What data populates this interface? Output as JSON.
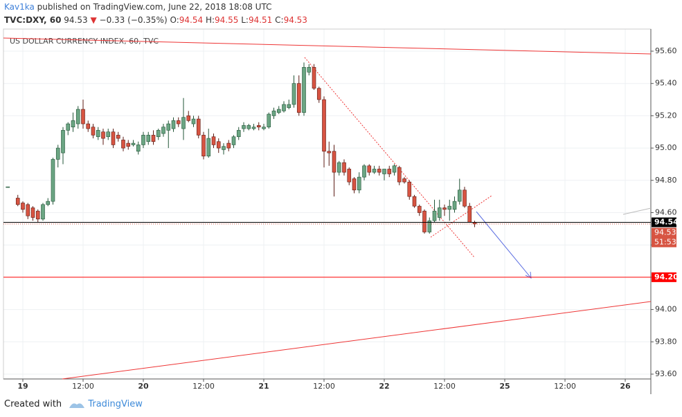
{
  "header": {
    "author": "Kav1ka",
    "published": "published on TradingView.com, June 22, 2018 18:08 UTC",
    "symbol": "TVC:DXY, 60",
    "last": "94.53",
    "change": "−0.33 (−0.35%)",
    "o_label": "O:",
    "o": "94.54",
    "h_label": "H:",
    "h": "94.55",
    "l_label": "L:",
    "l": "94.51",
    "c_label": "C:",
    "c": "94.53"
  },
  "chart_data": {
    "type": "candlestick",
    "title": "US DOLLAR CURRENCY INDEX, 60, TVC",
    "up_color": "#6ba583",
    "down_color": "#d75442",
    "x": [
      -3,
      -1,
      0,
      1,
      2,
      3,
      4,
      5,
      6,
      7,
      8,
      9,
      10,
      11,
      12,
      13,
      14,
      15,
      16,
      17,
      18,
      19,
      20,
      21,
      22,
      23,
      24,
      25,
      26,
      27,
      28,
      29,
      30,
      31,
      32,
      33,
      34,
      35,
      36,
      37,
      38,
      39,
      40,
      41,
      42,
      43,
      44,
      45,
      46,
      47,
      48,
      49,
      50,
      51,
      52,
      53,
      54,
      55,
      56,
      57,
      58,
      59,
      60,
      61,
      62,
      63,
      64,
      65,
      66,
      67,
      68,
      69,
      70,
      71,
      72,
      73,
      74,
      75,
      76,
      77,
      78,
      79,
      80,
      81,
      82,
      83,
      84,
      85,
      86,
      87,
      88,
      89,
      90
    ],
    "open": [
      94.76,
      94.69,
      94.66,
      94.65,
      94.63,
      94.61,
      94.56,
      94.65,
      94.67,
      94.93,
      94.97,
      95.11,
      95.13,
      95.15,
      95.24,
      95.15,
      95.13,
      95.07,
      95.1,
      95.07,
      95.1,
      95.08,
      95.05,
      95.03,
      95.02,
      94.98,
      95.02,
      95.04,
      95.08,
      95.07,
      95.09,
      95.11,
      95.12,
      95.17,
      95.12,
      95.2,
      95.15,
      95.18,
      95.08,
      94.95,
      95.07,
      95.04,
      94.99,
      95.03,
      95.02,
      95.07,
      95.12,
      95.12,
      95.12,
      95.14,
      95.12,
      95.13,
      95.2,
      95.22,
      95.23,
      95.25,
      95.27,
      95.4,
      95.22,
      95.47,
      95.5,
      95.37,
      95.3,
      94.98,
      94.98,
      94.85,
      94.91,
      94.87,
      94.81,
      94.74,
      94.82,
      94.89,
      94.85,
      94.87,
      94.84,
      94.87,
      94.85,
      94.88,
      94.81,
      94.79,
      94.7,
      94.64,
      94.61,
      94.48,
      94.55,
      94.57,
      94.63,
      94.62,
      94.62,
      94.67,
      94.74,
      94.64,
      94.54
    ],
    "high": [
      94.76,
      94.71,
      94.67,
      94.66,
      94.64,
      94.62,
      94.66,
      94.69,
      94.94,
      95.02,
      95.13,
      95.16,
      95.22,
      95.26,
      95.3,
      95.17,
      95.15,
      95.13,
      95.12,
      95.12,
      95.12,
      95.1,
      95.07,
      95.05,
      95.05,
      95.04,
      95.1,
      95.1,
      95.11,
      95.12,
      95.15,
      95.17,
      95.19,
      95.19,
      95.31,
      95.23,
      95.2,
      95.2,
      95.1,
      95.12,
      95.09,
      95.06,
      95.03,
      95.05,
      95.08,
      95.13,
      95.16,
      95.15,
      95.15,
      95.16,
      95.15,
      95.22,
      95.25,
      95.26,
      95.29,
      95.3,
      95.45,
      95.45,
      95.53,
      95.52,
      95.52,
      95.38,
      95.32,
      95.04,
      95.02,
      94.92,
      94.93,
      94.88,
      94.82,
      94.85,
      94.9,
      94.9,
      94.89,
      94.89,
      94.87,
      94.89,
      94.9,
      94.89,
      94.82,
      94.8,
      94.71,
      94.65,
      94.62,
      94.57,
      94.68,
      94.68,
      94.65,
      94.68,
      94.7,
      94.81,
      94.76,
      94.66,
      94.55
    ],
    "low": [
      94.76,
      94.64,
      94.6,
      94.56,
      94.55,
      94.54,
      94.55,
      94.64,
      94.65,
      94.88,
      94.9,
      95.08,
      95.1,
      95.12,
      95.12,
      95.1,
      95.06,
      95.05,
      95.02,
      95.05,
      95.0,
      95.04,
      94.98,
      94.99,
      95.01,
      94.96,
      95.0,
      95.02,
      95.02,
      95.05,
      95.07,
      95.0,
      95.1,
      95.13,
      95.05,
      95.16,
      95.13,
      95.06,
      94.93,
      94.94,
      95.0,
      94.97,
      94.96,
      94.98,
      95.0,
      95.05,
      95.1,
      95.11,
      95.11,
      95.11,
      95.11,
      95.12,
      95.18,
      95.21,
      95.22,
      95.24,
      95.25,
      95.2,
      95.2,
      95.45,
      95.36,
      95.28,
      94.88,
      94.89,
      94.7,
      94.83,
      94.83,
      94.77,
      94.72,
      94.72,
      94.8,
      94.83,
      94.84,
      94.83,
      94.8,
      94.82,
      94.83,
      94.77,
      94.78,
      94.68,
      94.63,
      94.58,
      94.47,
      94.47,
      94.54,
      94.55,
      94.58,
      94.55,
      94.6,
      94.65,
      94.63,
      94.54,
      94.51
    ],
    "close": [
      94.76,
      94.65,
      94.62,
      94.58,
      94.57,
      94.56,
      94.65,
      94.67,
      94.93,
      95.0,
      95.11,
      95.15,
      95.17,
      95.24,
      95.15,
      95.12,
      95.08,
      95.11,
      95.06,
      95.1,
      95.02,
      95.06,
      95.0,
      95.01,
      95.03,
      95.02,
      95.08,
      95.08,
      95.04,
      95.11,
      95.13,
      95.15,
      95.17,
      95.15,
      95.19,
      95.17,
      95.18,
      95.08,
      94.95,
      95.06,
      95.02,
      95.0,
      95.01,
      95.0,
      95.07,
      95.11,
      95.14,
      95.14,
      95.13,
      95.13,
      95.13,
      95.21,
      95.23,
      95.24,
      95.27,
      95.27,
      95.4,
      95.22,
      95.5,
      95.5,
      95.37,
      95.3,
      94.98,
      94.97,
      94.85,
      94.91,
      94.85,
      94.79,
      94.74,
      94.82,
      94.89,
      94.85,
      94.87,
      94.85,
      94.87,
      94.84,
      94.89,
      94.79,
      94.79,
      94.7,
      94.64,
      94.6,
      94.48,
      94.55,
      94.61,
      94.63,
      94.62,
      94.64,
      94.67,
      94.74,
      94.64,
      94.54,
      94.53
    ],
    "xlim": [
      -3.86,
      125.1
    ],
    "ylim": [
      93.57,
      95.737
    ],
    "xticks": [
      {
        "value": 0,
        "label": "19"
      },
      {
        "value": 12,
        "label": "12:00"
      },
      {
        "value": 24,
        "label": "20"
      },
      {
        "value": 36,
        "label": "12:00"
      },
      {
        "value": 48,
        "label": "21"
      },
      {
        "value": 60,
        "label": "12:00"
      },
      {
        "value": 72,
        "label": "22"
      },
      {
        "value": 84,
        "label": "12:00"
      },
      {
        "value": 96,
        "label": "25"
      },
      {
        "value": 108,
        "label": "12:00"
      },
      {
        "value": 120,
        "label": "26"
      }
    ],
    "yticks": [
      {
        "value": 93.6,
        "label": "93.60"
      },
      {
        "value": 93.8,
        "label": "93.80"
      },
      {
        "value": 94,
        "label": "94.00"
      },
      {
        "value": 94.2,
        "label": "94.20"
      },
      {
        "value": 94.4,
        "label": "94.40"
      },
      {
        "value": 94.6,
        "label": "94.60"
      },
      {
        "value": 94.8,
        "label": "94.80"
      },
      {
        "value": 95,
        "label": "95.00"
      },
      {
        "value": 95.2,
        "label": "95.20"
      },
      {
        "value": 95.4,
        "label": "95.40"
      },
      {
        "value": 95.6,
        "label": "95.60"
      }
    ],
    "horizontal_lines": [
      {
        "value": 94.54,
        "label": "94.54",
        "color": "#000000"
      },
      {
        "value": 94.2,
        "label": "94.20",
        "color": "#ff0000"
      }
    ],
    "current_price": {
      "value": 94.53,
      "label": "94.53",
      "color": "#d75442"
    },
    "countdown": "51:53",
    "grid": true
  },
  "footer": {
    "created": "Created with",
    "brand": "TradingView"
  }
}
